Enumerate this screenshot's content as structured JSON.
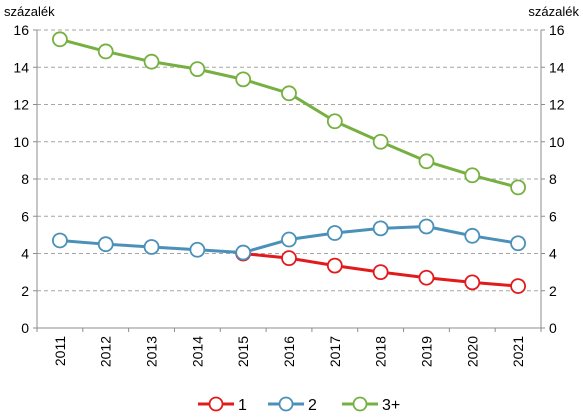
{
  "chart_data": {
    "type": "line",
    "y_unit_left": "százalék",
    "y_unit_right": "százalék",
    "x": [
      "2011",
      "2012",
      "2013",
      "2014",
      "2015",
      "2016",
      "2017",
      "2018",
      "2019",
      "2020",
      "2021"
    ],
    "ylim": [
      0,
      16
    ],
    "yticks": [
      0,
      2,
      4,
      6,
      8,
      10,
      12,
      14,
      16
    ],
    "grid": true,
    "legend_position": "bottom",
    "series": [
      {
        "name": "1",
        "color": "#e31a1c",
        "values": [
          null,
          null,
          null,
          null,
          4.0,
          3.75,
          3.35,
          3.0,
          2.7,
          2.45,
          2.25
        ]
      },
      {
        "name": "2",
        "color": "#4a90b8",
        "values": [
          4.7,
          4.5,
          4.35,
          4.2,
          4.05,
          4.75,
          5.1,
          5.35,
          5.45,
          4.95,
          4.55
        ]
      },
      {
        "name": "3+",
        "color": "#76b041",
        "values": [
          15.5,
          14.85,
          14.3,
          13.9,
          13.35,
          12.6,
          11.1,
          10.0,
          8.95,
          8.2,
          7.55
        ]
      }
    ]
  }
}
